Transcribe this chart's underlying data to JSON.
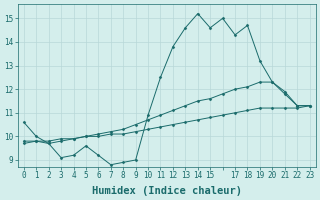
{
  "xlabel": "Humidex (Indice chaleur)",
  "ylabel": "",
  "background_color": "#d4eeec",
  "grid_color": "#b8d8d8",
  "line_color": "#1a6b6b",
  "x": [
    0,
    1,
    2,
    3,
    4,
    5,
    6,
    7,
    8,
    9,
    10,
    11,
    12,
    13,
    14,
    15,
    16,
    17,
    18,
    19,
    20,
    21,
    22,
    23
  ],
  "line1": [
    10.6,
    10.0,
    9.7,
    9.1,
    9.2,
    9.6,
    9.2,
    8.8,
    8.9,
    9.0,
    10.9,
    12.5,
    13.8,
    14.6,
    15.2,
    14.6,
    15.0,
    14.3,
    14.7,
    13.2,
    12.3,
    11.9,
    11.3,
    11.3
  ],
  "line2": [
    9.8,
    9.8,
    9.7,
    9.8,
    9.9,
    10.0,
    10.1,
    10.2,
    10.3,
    10.5,
    10.7,
    10.9,
    11.1,
    11.3,
    11.5,
    11.6,
    11.8,
    12.0,
    12.1,
    12.3,
    12.3,
    11.8,
    11.3,
    11.3
  ],
  "line3": [
    9.7,
    9.8,
    9.8,
    9.9,
    9.9,
    10.0,
    10.0,
    10.1,
    10.1,
    10.2,
    10.3,
    10.4,
    10.5,
    10.6,
    10.7,
    10.8,
    10.9,
    11.0,
    11.1,
    11.2,
    11.2,
    11.2,
    11.2,
    11.3
  ],
  "ylim": [
    8.7,
    15.6
  ],
  "xlim": [
    -0.5,
    23.5
  ],
  "yticks": [
    9,
    10,
    11,
    12,
    13,
    14,
    15
  ],
  "xticks": [
    0,
    1,
    2,
    3,
    4,
    5,
    6,
    7,
    8,
    9,
    10,
    11,
    12,
    13,
    14,
    15,
    16,
    17,
    18,
    19,
    20,
    21,
    22,
    23
  ],
  "xtick_labels": [
    "0",
    "1",
    "2",
    "3",
    "4",
    "5",
    "6",
    "7",
    "8",
    "9",
    "10",
    "11",
    "12",
    "13",
    "14",
    "15",
    "",
    "17",
    "18",
    "19",
    "20",
    "21",
    "22",
    "23"
  ],
  "marker": "D",
  "markersize": 1.5,
  "linewidth": 0.7,
  "tick_fontsize": 5.5,
  "xlabel_fontsize": 7.5
}
